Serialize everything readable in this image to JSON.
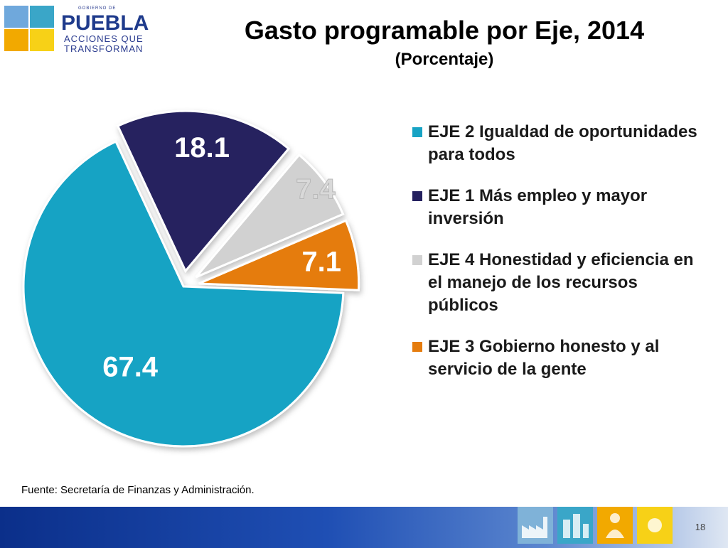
{
  "logo": {
    "gov_text": "GOBIERNO DE",
    "name": "PUEBLA",
    "tagline_1": "ACCIONES QUE",
    "tagline_2": "TRANSFORMAN"
  },
  "chart_data": {
    "type": "pie",
    "title": "Gasto programable por Eje, 2014",
    "subtitle": "(Porcentaje)",
    "slices": [
      {
        "label": "EJE 2 Igualdad de oportunidades para todos",
        "value": 67.4,
        "value_label": "67.4",
        "color": "#17a3c4",
        "label_color": "#ffffff"
      },
      {
        "label": "EJE 1 Más empleo y mayor inversión",
        "value": 18.1,
        "value_label": "18.1",
        "color": "#25215f",
        "label_color": "#ffffff"
      },
      {
        "label": "EJE 4 Honestidad y eficiencia en el manejo de los recursos públicos",
        "value": 7.4,
        "value_label": "7.4",
        "color": "#d1d1d1",
        "label_color": "#d9d9d9"
      },
      {
        "label": "EJE 3 Gobierno honesto y al servicio de la gente",
        "value": 7.1,
        "value_label": "7.1",
        "color": "#e57c0e",
        "label_color": "#ffffff"
      }
    ],
    "slice_order": "clockwise from 12 o'clock: EJE 1, EJE 4, EJE 3, EJE 2",
    "legend_placement": "right",
    "exploded": true
  },
  "legend": [
    {
      "text": "EJE 2 Igualdad de oportunidades para todos",
      "color": "#17a3c4"
    },
    {
      "text": "EJE 1 Más empleo y mayor inversión",
      "color": "#25215f"
    },
    {
      "text": "EJE 4 Honestidad y eficiencia en el manejo de los recursos públicos",
      "color": "#d1d1d1"
    },
    {
      "text": "EJE 3 Gobierno honesto y al servicio de la gente",
      "color": "#e57c0e"
    }
  ],
  "source": "Fuente: Secretaría de Finanzas y Administración.",
  "page_number": "18",
  "footer_icons": [
    "factory-icon",
    "city-icon",
    "people-icon",
    "sun-icon"
  ]
}
